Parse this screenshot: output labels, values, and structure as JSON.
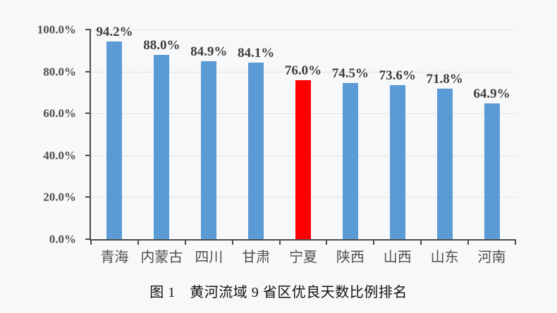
{
  "page": {
    "background": "#F7F8FA"
  },
  "caption": "图 1　黄河流域 9 省区优良天数比例排名",
  "chart_data": {
    "type": "bar",
    "title": "图 1　黄河流域 9 省区优良天数比例排名",
    "xlabel": "",
    "ylabel": "",
    "categories": [
      "青海",
      "内蒙古",
      "四川",
      "甘肃",
      "宁夏",
      "陕西",
      "山西",
      "山东",
      "河南"
    ],
    "values": [
      94.2,
      88.0,
      84.9,
      84.1,
      76.0,
      74.5,
      73.6,
      71.8,
      64.9
    ],
    "data_labels": [
      "94.2%",
      "88.0%",
      "84.9%",
      "84.1%",
      "76.0%",
      "74.5%",
      "73.6%",
      "71.8%",
      "64.9%"
    ],
    "highlight_index": 4,
    "grid": true,
    "legend": false,
    "y_axis": {
      "min": 0,
      "max": 100,
      "ticks": [
        {
          "value": 0,
          "label": "0.0%"
        },
        {
          "value": 20,
          "label": "20.0%"
        },
        {
          "value": 40,
          "label": "40.0%"
        },
        {
          "value": 60,
          "label": "60.0%"
        },
        {
          "value": 80,
          "label": "80.0%"
        },
        {
          "value": 100,
          "label": "100.0%"
        }
      ]
    },
    "colors": {
      "bar": "#5B9BD5",
      "highlight": "#FF0000",
      "axis": "#4D4D4D",
      "gridline": "#D6D6D6",
      "value_label_text": "#3D3D3D",
      "tick_label_text": "#4F4F4F",
      "caption_text": "#121212"
    }
  }
}
